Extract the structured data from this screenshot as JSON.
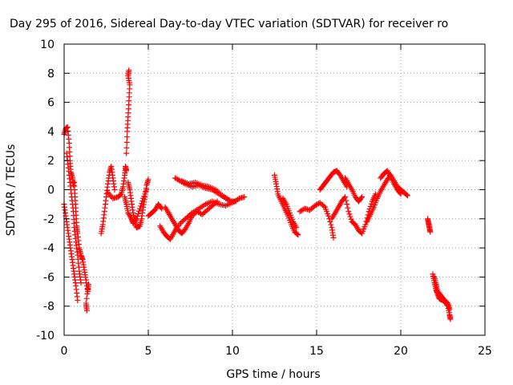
{
  "chart_data": {
    "type": "scatter",
    "title": "Day 295 of 2016, Sidereal Day-to-day VTEC variation (SDTVAR) for receiver ro",
    "xlabel": "GPS time / hours",
    "ylabel": "SDTVAR / TECUs",
    "xlim": [
      0,
      25
    ],
    "ylim": [
      -10,
      10
    ],
    "xticks": [
      0,
      5,
      10,
      15,
      20,
      25
    ],
    "yticks": [
      -10,
      -8,
      -6,
      -4,
      -2,
      0,
      2,
      4,
      6,
      8,
      10
    ],
    "grid": true,
    "marker": "+",
    "color": "#ff0000",
    "segments": [
      {
        "points": [
          [
            0.0,
            3.8
          ],
          [
            0.1,
            4.2
          ],
          [
            0.2,
            4.3
          ],
          [
            0.3,
            3.2
          ],
          [
            0.35,
            2.0
          ],
          [
            0.4,
            1.2
          ],
          [
            0.5,
            0.8
          ],
          [
            0.55,
            0.3
          ]
        ]
      },
      {
        "points": [
          [
            0.15,
            2.5
          ],
          [
            0.25,
            1.5
          ],
          [
            0.35,
            0.5
          ],
          [
            0.45,
            -0.5
          ],
          [
            0.55,
            -1.5
          ],
          [
            0.6,
            -2.6
          ],
          [
            0.7,
            -3.6
          ],
          [
            0.8,
            -4.5
          ],
          [
            0.9,
            -5.6
          ],
          [
            1.0,
            -6.4
          ]
        ]
      },
      {
        "points": [
          [
            0.0,
            -1.0
          ],
          [
            0.1,
            -1.8
          ],
          [
            0.2,
            -2.6
          ],
          [
            0.3,
            -3.4
          ],
          [
            0.4,
            -4.2
          ],
          [
            0.5,
            -5.0
          ],
          [
            0.6,
            -5.8
          ],
          [
            0.7,
            -6.6
          ],
          [
            0.8,
            -7.6
          ]
        ]
      },
      {
        "points": [
          [
            0.6,
            0.5
          ],
          [
            0.65,
            -0.5
          ],
          [
            0.7,
            -1.5
          ],
          [
            0.75,
            -2.5
          ],
          [
            0.8,
            -3.0
          ],
          [
            0.9,
            -4.0
          ],
          [
            1.0,
            -4.5
          ],
          [
            1.1,
            -4.8
          ],
          [
            1.2,
            -5.5
          ],
          [
            1.3,
            -6.2
          ],
          [
            1.4,
            -7.0
          ],
          [
            1.45,
            -6.5
          ],
          [
            1.3,
            -7.8
          ],
          [
            1.35,
            -8.3
          ]
        ]
      },
      {
        "points": [
          [
            2.2,
            -3.0
          ],
          [
            2.3,
            -2.4
          ],
          [
            2.4,
            -1.5
          ],
          [
            2.5,
            -0.5
          ],
          [
            2.6,
            0.4
          ],
          [
            2.7,
            1.2
          ],
          [
            2.8,
            1.6
          ],
          [
            2.9,
            0.8
          ],
          [
            3.0,
            0.0
          ]
        ]
      },
      {
        "points": [
          [
            2.6,
            -0.2
          ],
          [
            2.9,
            -0.6
          ],
          [
            3.2,
            -0.5
          ],
          [
            3.4,
            -0.3
          ],
          [
            3.5,
            0.2
          ],
          [
            3.6,
            1.0
          ],
          [
            3.65,
            1.6
          ],
          [
            3.7,
            1.3
          ]
        ]
      },
      {
        "points": [
          [
            3.7,
            2.5
          ],
          [
            3.75,
            4.0
          ],
          [
            3.8,
            5.0
          ],
          [
            3.85,
            6.1
          ],
          [
            3.9,
            7.2
          ],
          [
            3.8,
            7.8
          ],
          [
            3.85,
            8.2
          ]
        ]
      },
      {
        "points": [
          [
            3.8,
            0.5
          ],
          [
            3.9,
            0.0
          ],
          [
            4.0,
            -0.8
          ],
          [
            4.1,
            -1.6
          ],
          [
            4.2,
            -2.2
          ],
          [
            4.3,
            -2.6
          ],
          [
            4.5,
            -2.5
          ],
          [
            4.6,
            -2.0
          ],
          [
            4.7,
            -1.2
          ],
          [
            4.8,
            -0.5
          ],
          [
            4.9,
            0.3
          ],
          [
            5.0,
            0.7
          ]
        ]
      },
      {
        "points": [
          [
            3.6,
            -0.5
          ],
          [
            3.7,
            -1.0
          ],
          [
            3.8,
            -1.6
          ],
          [
            4.0,
            -2.0
          ],
          [
            4.1,
            -2.3
          ],
          [
            4.3,
            -2.0
          ],
          [
            4.5,
            -1.3
          ],
          [
            4.7,
            -0.6
          ],
          [
            4.9,
            0.0
          ]
        ]
      },
      {
        "points": [
          [
            5.0,
            -1.8
          ],
          [
            5.2,
            -1.6
          ],
          [
            5.4,
            -1.4
          ],
          [
            5.6,
            -1.0
          ],
          [
            5.8,
            -1.3
          ]
        ]
      },
      {
        "points": [
          [
            5.7,
            -2.5
          ],
          [
            5.9,
            -2.9
          ],
          [
            6.1,
            -3.2
          ],
          [
            6.3,
            -3.4
          ],
          [
            6.5,
            -3.0
          ],
          [
            6.7,
            -2.6
          ],
          [
            7.0,
            -2.2
          ],
          [
            7.3,
            -1.9
          ],
          [
            7.6,
            -1.6
          ],
          [
            8.0,
            -1.3
          ],
          [
            8.4,
            -1.0
          ],
          [
            8.8,
            -0.8
          ],
          [
            9.2,
            -1.0
          ],
          [
            9.6,
            -1.1
          ],
          [
            10.0,
            -0.9
          ],
          [
            10.4,
            -0.6
          ],
          [
            10.7,
            -0.5
          ]
        ]
      },
      {
        "points": [
          [
            6.0,
            -1.2
          ],
          [
            6.2,
            -1.6
          ],
          [
            6.4,
            -2.0
          ],
          [
            6.6,
            -2.4
          ],
          [
            6.8,
            -2.8
          ],
          [
            7.0,
            -3.0
          ],
          [
            7.2,
            -2.7
          ],
          [
            7.4,
            -2.3
          ],
          [
            7.6,
            -1.8
          ],
          [
            7.9,
            -1.5
          ],
          [
            8.2,
            -1.7
          ],
          [
            8.5,
            -1.4
          ],
          [
            8.8,
            -1.1
          ],
          [
            9.1,
            -0.8
          ]
        ]
      },
      {
        "points": [
          [
            6.6,
            0.8
          ],
          [
            6.9,
            0.6
          ],
          [
            7.2,
            0.4
          ],
          [
            7.6,
            0.2
          ],
          [
            8.0,
            0.3
          ],
          [
            8.4,
            0.1
          ],
          [
            8.8,
            0.0
          ],
          [
            9.2,
            -0.3
          ],
          [
            9.6,
            -0.6
          ],
          [
            9.9,
            -0.8
          ],
          [
            10.2,
            -0.8
          ]
        ]
      },
      {
        "points": [
          [
            7.0,
            0.6
          ],
          [
            7.4,
            0.4
          ],
          [
            7.8,
            0.5
          ],
          [
            8.2,
            0.3
          ],
          [
            8.6,
            0.2
          ],
          [
            9.0,
            0.0
          ],
          [
            9.4,
            -0.4
          ],
          [
            9.8,
            -0.7
          ]
        ]
      },
      {
        "points": [
          [
            12.5,
            1.0
          ],
          [
            12.6,
            0.4
          ],
          [
            12.7,
            -0.3
          ],
          [
            12.9,
            -0.8
          ],
          [
            13.1,
            -1.3
          ],
          [
            13.3,
            -1.8
          ],
          [
            13.5,
            -2.4
          ],
          [
            13.7,
            -2.9
          ],
          [
            13.9,
            -3.1
          ]
        ]
      },
      {
        "points": [
          [
            13.0,
            -0.6
          ],
          [
            13.2,
            -1.0
          ],
          [
            13.4,
            -1.6
          ],
          [
            13.6,
            -2.2
          ],
          [
            13.8,
            -2.6
          ]
        ]
      },
      {
        "points": [
          [
            14.0,
            -1.5
          ],
          [
            14.3,
            -1.3
          ],
          [
            14.6,
            -1.4
          ],
          [
            14.9,
            -1.1
          ],
          [
            15.2,
            -0.9
          ],
          [
            15.5,
            -1.2
          ],
          [
            15.7,
            -1.8
          ],
          [
            15.9,
            -2.6
          ],
          [
            16.0,
            -3.3
          ]
        ]
      },
      {
        "points": [
          [
            15.2,
            0.0
          ],
          [
            15.4,
            0.3
          ],
          [
            15.6,
            0.6
          ],
          [
            15.8,
            0.9
          ],
          [
            16.0,
            1.2
          ],
          [
            16.2,
            1.3
          ],
          [
            16.4,
            1.0
          ],
          [
            16.6,
            0.6
          ],
          [
            16.8,
            0.2
          ]
        ]
      },
      {
        "points": [
          [
            15.9,
            -2.0
          ],
          [
            16.1,
            -1.6
          ],
          [
            16.3,
            -1.2
          ],
          [
            16.5,
            -0.8
          ],
          [
            16.7,
            -0.5
          ],
          [
            16.9,
            -1.5
          ],
          [
            17.1,
            -2.2
          ],
          [
            17.3,
            -2.4
          ],
          [
            17.5,
            -2.8
          ],
          [
            17.7,
            -3.0
          ],
          [
            17.9,
            -2.4
          ],
          [
            18.1,
            -1.5
          ],
          [
            18.3,
            -0.8
          ],
          [
            18.5,
            -0.3
          ]
        ]
      },
      {
        "points": [
          [
            16.7,
            0.8
          ],
          [
            16.9,
            0.4
          ],
          [
            17.1,
            0.0
          ],
          [
            17.3,
            -0.5
          ],
          [
            17.5,
            -0.8
          ],
          [
            17.7,
            -0.5
          ]
        ]
      },
      {
        "points": [
          [
            18.0,
            -2.2
          ],
          [
            18.2,
            -1.7
          ],
          [
            18.4,
            -1.2
          ],
          [
            18.6,
            -0.6
          ],
          [
            18.8,
            -0.1
          ],
          [
            19.0,
            0.3
          ],
          [
            19.2,
            0.7
          ],
          [
            19.4,
            1.0
          ],
          [
            19.6,
            0.6
          ],
          [
            19.8,
            0.2
          ],
          [
            20.0,
            0.0
          ],
          [
            20.2,
            -0.2
          ],
          [
            20.4,
            -0.4
          ]
        ]
      },
      {
        "points": [
          [
            18.8,
            0.8
          ],
          [
            19.0,
            1.1
          ],
          [
            19.2,
            1.3
          ],
          [
            19.4,
            0.9
          ],
          [
            19.6,
            0.4
          ],
          [
            19.8,
            0.0
          ],
          [
            20.0,
            -0.3
          ]
        ]
      },
      {
        "points": [
          [
            21.6,
            -2.0
          ],
          [
            21.65,
            -2.3
          ],
          [
            21.7,
            -2.6
          ],
          [
            21.75,
            -2.9
          ]
        ]
      },
      {
        "points": [
          [
            21.9,
            -5.8
          ],
          [
            22.0,
            -6.4
          ],
          [
            22.1,
            -6.9
          ],
          [
            22.2,
            -7.2
          ],
          [
            22.3,
            -7.5
          ],
          [
            22.5,
            -7.6
          ],
          [
            22.7,
            -7.8
          ],
          [
            22.8,
            -8.0
          ],
          [
            22.9,
            -8.6
          ],
          [
            22.95,
            -8.9
          ]
        ]
      },
      {
        "points": [
          [
            22.0,
            -6.0
          ],
          [
            22.1,
            -6.5
          ],
          [
            22.2,
            -7.0
          ],
          [
            22.4,
            -7.3
          ],
          [
            22.6,
            -7.6
          ],
          [
            22.8,
            -7.8
          ],
          [
            22.9,
            -8.2
          ]
        ]
      }
    ]
  }
}
